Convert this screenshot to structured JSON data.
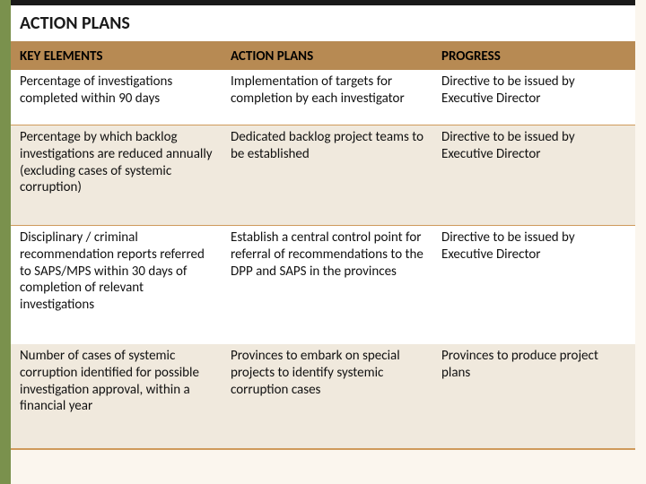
{
  "colors": {
    "left_stripe": "#7a914d",
    "title_top_border": "#1a1a1a",
    "accent_border": "#b78a53",
    "row_divider": "#cf9a5b",
    "header_bg": "#b78a53",
    "row_alt_bg": "#f0e9dd",
    "row_bg": "#ffffff",
    "page_bg": "#fbf6ee"
  },
  "title": "ACTION PLANS",
  "table": {
    "headers": {
      "key_elements": "KEY ELEMENTS",
      "action_plans": "ACTION PLANS",
      "progress": "PROGRESS"
    },
    "rows": [
      {
        "key": "Percentage of investigations completed within 90 days",
        "plan": "Implementation of targets for completion by each investigator",
        "progress": "Directive to be issued by Executive Director"
      },
      {
        "key": "Percentage by which backlog investigations are reduced annually (excluding cases of systemic corruption)",
        "plan": "Dedicated backlog project teams to be established",
        "progress": "Directive to be issued by Executive Director"
      },
      {
        "key": "Disciplinary / criminal recommendation reports referred to SAPS/MPS within 30 days of completion of relevant investigations",
        "plan": "Establish a central control point for referral of recommendations to the DPP and SAPS in the provinces",
        "progress": "Directive to be issued by Executive Director"
      },
      {
        "key": "Number of cases of systemic corruption identified for possible investigation approval, within a financial year",
        "plan": "Provinces to embark on special projects to identify systemic corruption cases",
        "progress": "Provinces to produce project plans"
      }
    ]
  }
}
